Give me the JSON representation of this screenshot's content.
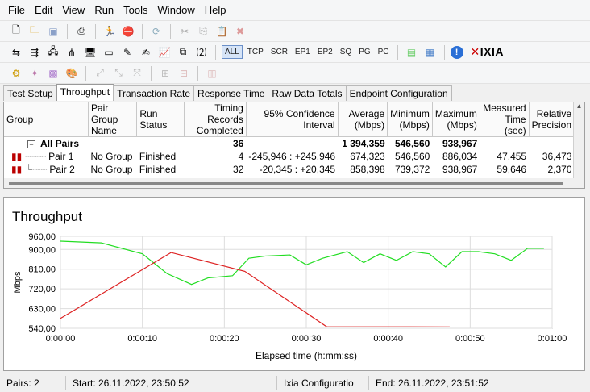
{
  "menu": [
    "File",
    "Edit",
    "View",
    "Run",
    "Tools",
    "Window",
    "Help"
  ],
  "toolbar2_filters": [
    "ALL",
    "TCP",
    "SCR",
    "EP1",
    "EP2",
    "SQ",
    "PG",
    "PC"
  ],
  "brand": "IXIA",
  "tabs": [
    "Test Setup",
    "Throughput",
    "Transaction Rate",
    "Response Time",
    "Raw Data Totals",
    "Endpoint Configuration"
  ],
  "table": {
    "headers": [
      "Group",
      "Pair Group Name",
      "Run Status",
      "Timing Records Completed",
      "95% Confidence Interval",
      "Average (Mbps)",
      "Minimum (Mbps)",
      "Maximum (Mbps)",
      "Measured Time (sec)",
      "Relative Precision"
    ],
    "summary": {
      "label": "All Pairs",
      "records": "36",
      "average": "1 394,359",
      "minimum": "546,560",
      "maximum": "938,967"
    },
    "rows": [
      {
        "pair": "Pair 1",
        "group": "No Group",
        "status": "Finished",
        "records": "4",
        "ci": "-245,946 : +245,946",
        "avg": "674,323",
        "min": "546,560",
        "max": "886,034",
        "time": "47,455",
        "precision": "36,473"
      },
      {
        "pair": "Pair 2",
        "group": "No Group",
        "status": "Finished",
        "records": "32",
        "ci": "-20,345 : +20,345",
        "avg": "858,398",
        "min": "739,372",
        "max": "938,967",
        "time": "59,646",
        "precision": "2,370"
      }
    ]
  },
  "chart_data": {
    "type": "line",
    "title": "Throughput",
    "xlabel": "Elapsed time (h:mm:ss)",
    "ylabel": "Mbps",
    "xlim": [
      0,
      60
    ],
    "ylim": [
      540,
      960
    ],
    "yticks": [
      "960,00",
      "900,00",
      "810,00",
      "720,00",
      "630,00",
      "540,00"
    ],
    "ytick_values": [
      960,
      900,
      810,
      720,
      630,
      540
    ],
    "xticks": [
      "0:00:00",
      "0:00:10",
      "0:00:20",
      "0:00:30",
      "0:00:40",
      "0:00:50",
      "0:01:00"
    ],
    "grid": true,
    "series": [
      {
        "color": "#22dd22",
        "x": [
          0,
          5,
          10,
          13,
          16,
          18,
          21,
          23,
          25,
          28,
          30,
          32,
          35,
          37,
          39,
          41,
          43,
          45,
          47,
          49,
          51,
          53,
          55,
          57,
          59
        ],
        "y": [
          938,
          930,
          880,
          790,
          740,
          770,
          780,
          860,
          870,
          875,
          830,
          860,
          890,
          840,
          880,
          850,
          890,
          880,
          820,
          890,
          890,
          880,
          850,
          905,
          905
        ]
      },
      {
        "color": "#dd2222",
        "x": [
          0,
          13.5,
          22.5,
          32.5,
          47.5
        ],
        "y": [
          585,
          886,
          800,
          547,
          546
        ]
      }
    ]
  },
  "status": {
    "pairs": "Pairs: 2",
    "start": "Start: 26.11.2022, 23:50:52",
    "config": "Ixia Configuratio",
    "end": "End: 26.11.2022, 23:51:52"
  }
}
